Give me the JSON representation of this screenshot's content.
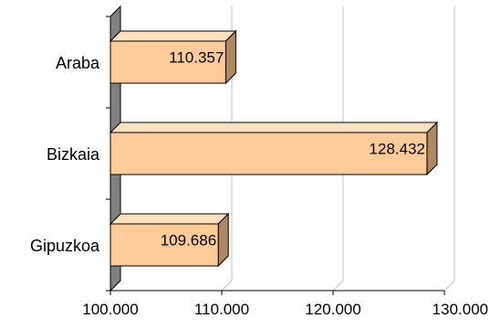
{
  "chart_data": {
    "type": "bar",
    "orientation": "horizontal",
    "categories": [
      "Araba",
      "Bizkaia",
      "Gipuzkoa"
    ],
    "values": [
      110357,
      128432,
      109686
    ],
    "value_labels": [
      "110.357",
      "128.432",
      "109.686"
    ],
    "xlim": [
      100000,
      130000
    ],
    "x_ticks": [
      100000,
      110000,
      120000,
      130000
    ],
    "x_tick_labels": [
      "100.000",
      "110.000",
      "120.000",
      "130.000"
    ],
    "title": "",
    "xlabel": "",
    "ylabel": "",
    "grid": "vertical",
    "legend": "none",
    "bar_color": "#FFCC99",
    "bar_edge_color": "#000000",
    "grid_color": "#C0C0C0",
    "wall_color": "#808080"
  }
}
